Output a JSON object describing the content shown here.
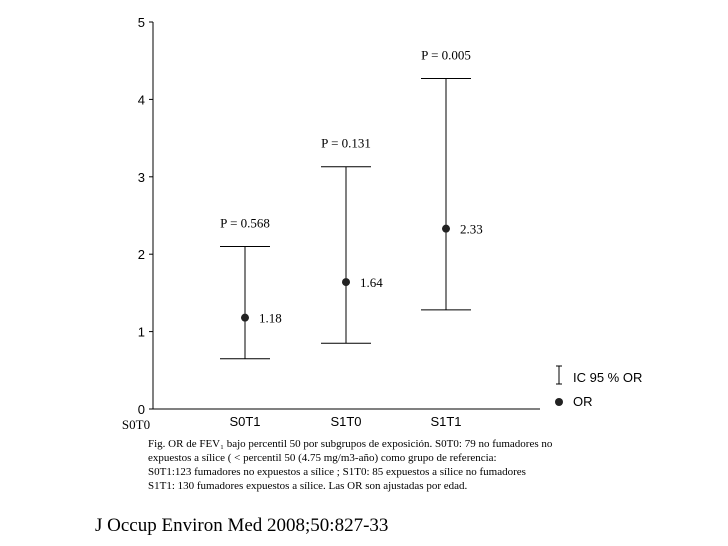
{
  "chart_data": {
    "type": "errorbar",
    "title": "",
    "xlabel": "",
    "ylabel": "",
    "ylim": [
      0,
      5
    ],
    "yticks": [
      "0",
      "1",
      "2",
      "3",
      "4",
      "5"
    ],
    "grid": false,
    "baseline_category": "S0T0",
    "categories": [
      "S0T1",
      "S1T0",
      "S1T1"
    ],
    "series": [
      {
        "points": [
          {
            "category": "S0T1",
            "or": 1.18,
            "ci_low": 0.65,
            "ci_high": 2.1,
            "or_label": "1.18",
            "p_label": "P = 0.568"
          },
          {
            "category": "S1T0",
            "or": 1.64,
            "ci_low": 0.85,
            "ci_high": 3.13,
            "or_label": "1.64",
            "p_label": "P = 0.131"
          },
          {
            "category": "S1T1",
            "or": 2.33,
            "ci_low": 1.28,
            "ci_high": 4.27,
            "or_label": "2.33",
            "p_label": "P = 0.005"
          }
        ]
      }
    ],
    "legend": {
      "position": "bottom-right",
      "entries": [
        {
          "symbol": "errorbar",
          "label": "IC 95 % OR"
        },
        {
          "symbol": "dot",
          "label": "OR"
        }
      ]
    }
  },
  "caption": {
    "lines": [
      "Fig.  OR de FEV₁ bajo percentil 50 por subgrupos de exposición.  S0T0: 79 no fumadores no",
      "expuestos a sílice ( < percentil 50  (4.75 mg/m3-año) como grupo de referencia:",
      "S0T1:123 fumadores no expuestos a sílice ; S1T0: 85 expuestos a sílice no fumadores",
      "S1T1: 130 fumadores expuestos a sílice. Las OR son ajustadas por edad."
    ]
  },
  "citation": "J Occup Environ Med 2008;50:827-33"
}
